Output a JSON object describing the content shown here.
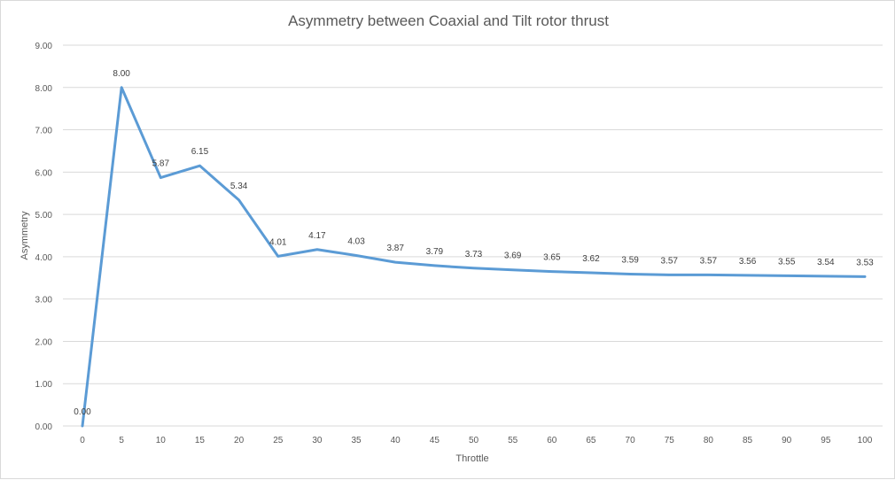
{
  "chart_data": {
    "type": "line",
    "title": "Asymmetry between Coaxial and Tilt rotor thrust",
    "xlabel": "Throttle",
    "ylabel": "Asymmetry",
    "categories": [
      "0",
      "5",
      "10",
      "15",
      "20",
      "25",
      "30",
      "35",
      "40",
      "45",
      "50",
      "55",
      "60",
      "65",
      "70",
      "75",
      "80",
      "85",
      "90",
      "95",
      "100"
    ],
    "series": [
      {
        "values": [
          0.0,
          8.0,
          5.87,
          6.15,
          5.34,
          4.01,
          4.17,
          4.03,
          3.87,
          3.79,
          3.73,
          3.69,
          3.65,
          3.62,
          3.59,
          3.57,
          3.57,
          3.56,
          3.55,
          3.54,
          3.53
        ],
        "labels": [
          "0.00",
          "8.00",
          "5.87",
          "6.15",
          "5.34",
          "4.01",
          "4.17",
          "4.03",
          "3.87",
          "3.79",
          "3.73",
          "3.69",
          "3.65",
          "3.62",
          "3.59",
          "3.57",
          "3.57",
          "3.56",
          "3.55",
          "3.54",
          "3.53"
        ],
        "color": "#5b9bd5"
      }
    ],
    "ylim": [
      0,
      9
    ],
    "yticks": [
      "0.00",
      "1.00",
      "2.00",
      "3.00",
      "4.00",
      "5.00",
      "6.00",
      "7.00",
      "8.00",
      "9.00"
    ],
    "grid": true,
    "legend": "none"
  }
}
